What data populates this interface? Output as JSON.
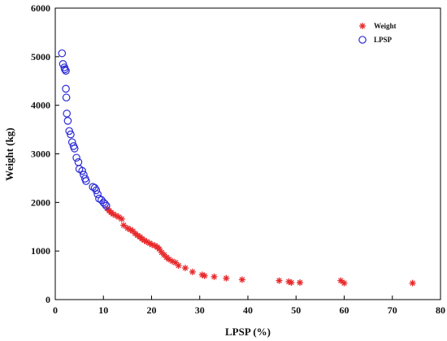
{
  "chart_data": {
    "type": "scatter",
    "xlabel": "LPSP  (%)",
    "ylabel": "Weight  (kg)",
    "xlim": [
      0,
      80
    ],
    "ylim": [
      0,
      6000
    ],
    "xticks": [
      "0",
      "10",
      "20",
      "30",
      "40",
      "50",
      "60",
      "70",
      "80"
    ],
    "yticks": [
      "0",
      "1000",
      "2000",
      "3000",
      "4000",
      "5000",
      "6000"
    ],
    "grid": false,
    "legend_position": "top-right",
    "series": [
      {
        "name": "Weight",
        "marker": "asterisk",
        "color": "#e8292b",
        "points": [
          [
            10.8,
            1870
          ],
          [
            11.2,
            1830
          ],
          [
            11.6,
            1790
          ],
          [
            12.0,
            1760
          ],
          [
            12.6,
            1730
          ],
          [
            13.2,
            1700
          ],
          [
            13.8,
            1660
          ],
          [
            14.2,
            1530
          ],
          [
            15.0,
            1470
          ],
          [
            15.6,
            1440
          ],
          [
            16.1,
            1410
          ],
          [
            16.6,
            1360
          ],
          [
            17.1,
            1320
          ],
          [
            17.6,
            1290
          ],
          [
            18.0,
            1250
          ],
          [
            18.5,
            1220
          ],
          [
            19.0,
            1190
          ],
          [
            19.6,
            1160
          ],
          [
            20.1,
            1130
          ],
          [
            20.7,
            1110
          ],
          [
            21.2,
            1080
          ],
          [
            21.6,
            1040
          ],
          [
            22.1,
            970
          ],
          [
            22.6,
            920
          ],
          [
            23.1,
            870
          ],
          [
            23.6,
            830
          ],
          [
            24.3,
            790
          ],
          [
            25.0,
            760
          ],
          [
            25.6,
            700
          ],
          [
            27.0,
            650
          ],
          [
            28.5,
            570
          ],
          [
            30.5,
            510
          ],
          [
            31.0,
            490
          ],
          [
            33.0,
            470
          ],
          [
            35.5,
            440
          ],
          [
            38.8,
            410
          ],
          [
            46.5,
            390
          ],
          [
            48.5,
            370
          ],
          [
            49.0,
            350
          ],
          [
            50.8,
            350
          ],
          [
            59.3,
            390
          ],
          [
            60.0,
            340
          ],
          [
            74.2,
            340
          ]
        ]
      },
      {
        "name": "LPSP",
        "marker": "open-circle",
        "color": "#2b2bd8",
        "points": [
          [
            1.4,
            5070
          ],
          [
            1.6,
            4850
          ],
          [
            1.9,
            4780
          ],
          [
            2.0,
            4740
          ],
          [
            2.2,
            4710
          ],
          [
            2.2,
            4340
          ],
          [
            2.3,
            4160
          ],
          [
            2.4,
            3830
          ],
          [
            2.6,
            3680
          ],
          [
            2.9,
            3470
          ],
          [
            3.2,
            3400
          ],
          [
            3.5,
            3240
          ],
          [
            3.8,
            3160
          ],
          [
            4.0,
            3110
          ],
          [
            4.4,
            2920
          ],
          [
            4.8,
            2830
          ],
          [
            5.0,
            2690
          ],
          [
            5.6,
            2650
          ],
          [
            5.9,
            2570
          ],
          [
            6.2,
            2490
          ],
          [
            6.4,
            2440
          ],
          [
            7.8,
            2320
          ],
          [
            8.2,
            2300
          ],
          [
            8.5,
            2250
          ],
          [
            8.8,
            2170
          ],
          [
            9.1,
            2080
          ],
          [
            9.6,
            2050
          ],
          [
            10.0,
            2000
          ],
          [
            10.3,
            1970
          ],
          [
            10.6,
            1930
          ]
        ]
      }
    ]
  }
}
